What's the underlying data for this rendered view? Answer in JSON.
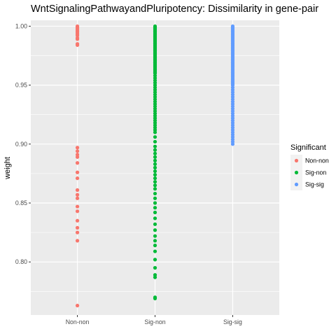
{
  "chart_data": {
    "type": "scatter",
    "title": "WntSignalingPathwayandPluripotency: Dissimilarity in gene-pair",
    "xlabel": "",
    "ylabel": "weight",
    "categories": [
      "Non-non",
      "Sig-non",
      "Sig-sig"
    ],
    "ylim": [
      0.755,
      1.005
    ],
    "yticks": [
      0.8,
      0.85,
      0.9,
      0.95,
      1.0
    ],
    "ytick_labels": [
      "0.80",
      "0.85",
      "0.90",
      "0.95",
      "1.00"
    ],
    "grid": true,
    "legend": {
      "title": "Significant",
      "position": "right",
      "entries": [
        "Non-non",
        "Sig-non",
        "Sig-sig"
      ]
    },
    "colors": {
      "Non-non": "#F8766D",
      "Sig-non": "#00BA38",
      "Sig-sig": "#619CFF",
      "panel_background": "#EBEBEB",
      "grid_line": "#FFFFFF"
    },
    "series": [
      {
        "name": "Non-non",
        "x": "Non-non",
        "values": [
          1.0,
          0.999,
          0.998,
          0.997,
          0.996,
          0.995,
          0.994,
          0.993,
          0.992,
          0.99,
          0.989,
          0.985,
          0.984,
          0.897,
          0.894,
          0.891,
          0.889,
          0.884,
          0.876,
          0.871,
          0.861,
          0.857,
          0.854,
          0.847,
          0.843,
          0.835,
          0.829,
          0.825,
          0.818,
          0.763
        ]
      },
      {
        "name": "Sig-non",
        "x": "Sig-non",
        "values": [
          1.0,
          0.999,
          0.998,
          0.997,
          0.996,
          0.995,
          0.994,
          0.993,
          0.992,
          0.991,
          0.99,
          0.989,
          0.988,
          0.987,
          0.986,
          0.985,
          0.984,
          0.983,
          0.982,
          0.981,
          0.98,
          0.979,
          0.978,
          0.977,
          0.976,
          0.975,
          0.974,
          0.973,
          0.972,
          0.971,
          0.97,
          0.969,
          0.968,
          0.967,
          0.966,
          0.965,
          0.964,
          0.963,
          0.962,
          0.961,
          0.96,
          0.958,
          0.956,
          0.954,
          0.952,
          0.95,
          0.948,
          0.946,
          0.944,
          0.942,
          0.94,
          0.938,
          0.936,
          0.934,
          0.932,
          0.93,
          0.928,
          0.926,
          0.924,
          0.922,
          0.92,
          0.918,
          0.916,
          0.914,
          0.912,
          0.91,
          0.906,
          0.902,
          0.898,
          0.895,
          0.892,
          0.889,
          0.886,
          0.883,
          0.88,
          0.877,
          0.874,
          0.871,
          0.868,
          0.865,
          0.862,
          0.858,
          0.854,
          0.85,
          0.846,
          0.842,
          0.837,
          0.832,
          0.827,
          0.822,
          0.818,
          0.814,
          0.809,
          0.802,
          0.795,
          0.789,
          0.787,
          0.77,
          0.769
        ]
      },
      {
        "name": "Sig-sig",
        "x": "Sig-sig",
        "values": [
          1.0,
          0.999,
          0.998,
          0.997,
          0.996,
          0.995,
          0.994,
          0.993,
          0.992,
          0.991,
          0.99,
          0.989,
          0.988,
          0.987,
          0.986,
          0.985,
          0.984,
          0.983,
          0.982,
          0.981,
          0.98,
          0.979,
          0.978,
          0.977,
          0.976,
          0.975,
          0.974,
          0.973,
          0.972,
          0.971,
          0.97,
          0.969,
          0.968,
          0.967,
          0.966,
          0.965,
          0.964,
          0.963,
          0.962,
          0.961,
          0.96,
          0.959,
          0.958,
          0.957,
          0.956,
          0.955,
          0.954,
          0.953,
          0.952,
          0.951,
          0.95,
          0.948,
          0.946,
          0.944,
          0.942,
          0.94,
          0.938,
          0.936,
          0.934,
          0.932,
          0.93,
          0.928,
          0.926,
          0.924,
          0.922,
          0.92,
          0.918,
          0.916,
          0.914,
          0.912,
          0.91,
          0.908,
          0.906,
          0.904,
          0.902,
          0.9
        ]
      }
    ]
  }
}
